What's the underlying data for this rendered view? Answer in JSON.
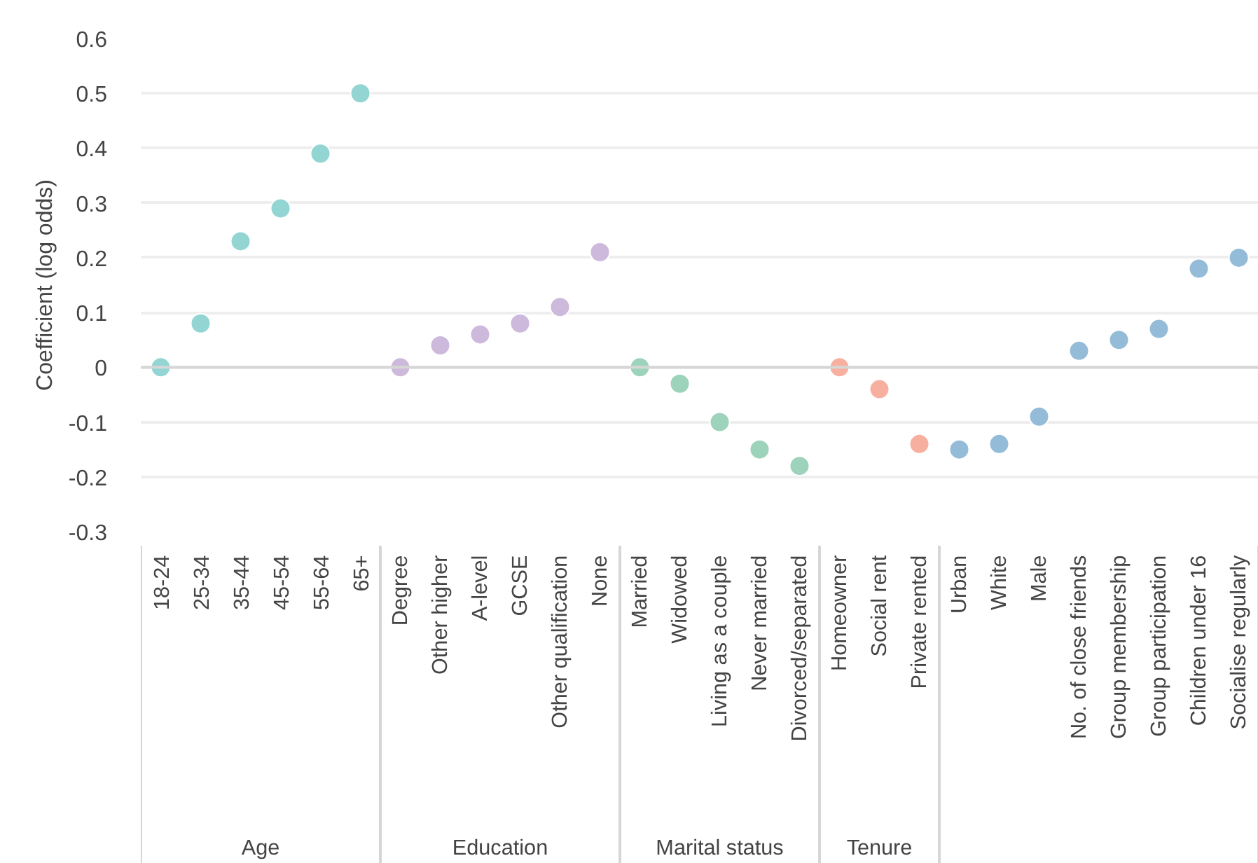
{
  "chart_data": {
    "type": "scatter",
    "ylabel": "Coefficient (log odds)",
    "categories": [
      "18-24",
      "25-34",
      "35-44",
      "45-54",
      "55-64",
      "65+",
      "Degree",
      "Other higher",
      "A-level",
      "GCSE",
      "Other qualification",
      "None",
      "Married",
      "Widowed",
      "Living as a couple",
      "Never married",
      "Divorced/separated",
      "Homeowner",
      "Social rent",
      "Private rented",
      "Urban",
      "White",
      "Male",
      "No. of close friends",
      "Group membership",
      "Group participation",
      "Children under 16",
      "Socialise regularly"
    ],
    "series": [
      {
        "color": "#93d5d3",
        "x": [
          "18-24",
          "25-34",
          "35-44",
          "45-54",
          "55-64",
          "65+"
        ],
        "values": [
          0,
          0.08,
          0.23,
          0.29,
          0.39,
          0.5
        ]
      },
      {
        "color": "#cdb9dc",
        "x": [
          "Degree",
          "Other higher",
          "A-level",
          "GCSE",
          "Other qualification",
          "None"
        ],
        "values": [
          0,
          0.04,
          0.06,
          0.08,
          0.11,
          0.21
        ]
      },
      {
        "color": "#9dd3ba",
        "x": [
          "Married",
          "Widowed",
          "Living as a couple",
          "Never married",
          "Divorced/separated"
        ],
        "values": [
          0,
          -0.03,
          -0.1,
          -0.15,
          -0.18
        ]
      },
      {
        "color": "#f7b0a0",
        "x": [
          "Homeowner",
          "Social rent",
          "Private rented"
        ],
        "values": [
          0,
          -0.04,
          -0.14
        ]
      },
      {
        "color": "#94bcd8",
        "x": [
          "Urban",
          "White",
          "Male",
          "No. of close friends",
          "Group membership",
          "Group participation",
          "Children under 16",
          "Socialise regularly"
        ],
        "values": [
          -0.15,
          -0.14,
          -0.09,
          0.03,
          0.05,
          0.07,
          0.18,
          0.2
        ]
      }
    ],
    "ylim": [
      -0.3,
      0.6
    ],
    "yticks": [
      -0.3,
      -0.2,
      -0.1,
      0,
      0.1,
      0.2,
      0.3,
      0.4,
      0.5,
      0.6
    ],
    "annotations": [
      "Age",
      "Education",
      "Marital status",
      "Tenure"
    ],
    "grid": "y",
    "marker": "circle"
  }
}
